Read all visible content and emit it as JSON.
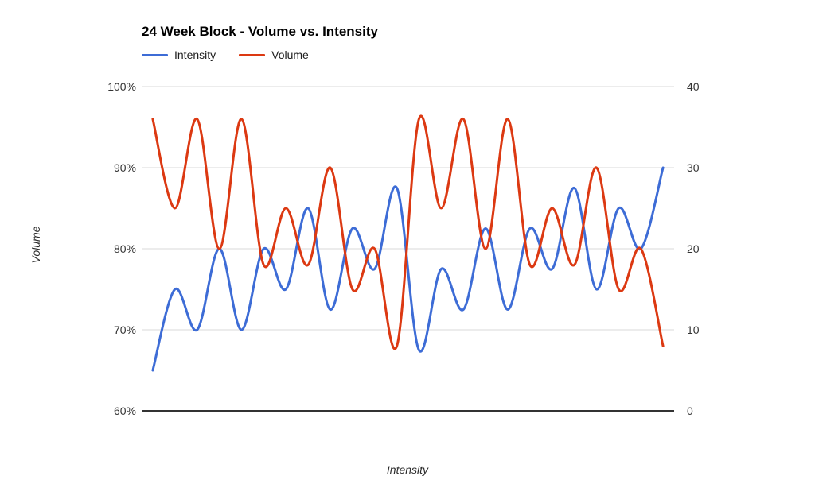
{
  "chart": {
    "title": "24 Week Block - Volume vs. Intensity",
    "legend": {
      "items": [
        {
          "label": "Intensity",
          "color": "#3D6CD6"
        },
        {
          "label": "Volume",
          "color": "#DC3912"
        }
      ]
    },
    "left_axis": {
      "title": "Volume",
      "tick_labels": [
        "100%",
        "90%",
        "80%",
        "70%",
        "60%"
      ]
    },
    "right_axis": {
      "tick_labels": [
        "40",
        "30",
        "20",
        "10",
        "0"
      ]
    },
    "x_axis": {
      "title": "Intensity"
    }
  },
  "chart_data": {
    "type": "line",
    "title": "24 Week Block - Volume vs. Intensity",
    "xlabel": "Intensity",
    "ylabel_left": "Volume",
    "x": [
      1,
      2,
      3,
      4,
      5,
      6,
      7,
      8,
      9,
      10,
      11,
      12,
      13,
      14,
      15,
      16,
      17,
      18,
      19,
      20,
      21,
      22,
      23,
      24
    ],
    "series": [
      {
        "name": "Intensity",
        "axis": "left",
        "unit": "%",
        "color": "#3D6CD6",
        "values": [
          65,
          75,
          70,
          80,
          70,
          80,
          75,
          85,
          72.5,
          82.5,
          77.5,
          87.5,
          67.5,
          77.5,
          72.5,
          82.5,
          72.5,
          82.5,
          77.5,
          87.5,
          75,
          85,
          80,
          90
        ]
      },
      {
        "name": "Volume",
        "axis": "right",
        "unit": "",
        "color": "#DC3912",
        "values": [
          36,
          25,
          36,
          20,
          36,
          18,
          25,
          18,
          30,
          15,
          20,
          8,
          36,
          25,
          36,
          20,
          36,
          18,
          25,
          18,
          30,
          15,
          20,
          8
        ]
      }
    ],
    "left_ylim": [
      60,
      100
    ],
    "right_ylim": [
      0,
      40
    ],
    "left_ticks_pct": [
      100,
      90,
      80,
      70,
      60
    ],
    "right_ticks": [
      40,
      30,
      20,
      10,
      0
    ],
    "smooth": true,
    "grid": true,
    "legend_position": "top-left"
  }
}
